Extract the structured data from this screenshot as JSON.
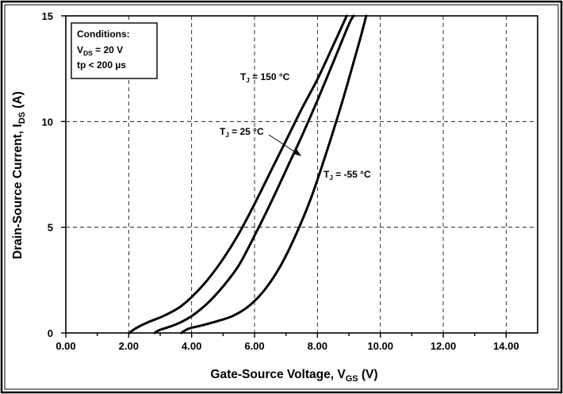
{
  "chart_data": {
    "type": "line",
    "title": "",
    "xlabel": {
      "main": "Gate-Source Voltage, V",
      "sub": "GS",
      "unit": " (V)"
    },
    "ylabel": {
      "main": "Drain-Source Current, I",
      "sub": "DS",
      "unit": " (A)"
    },
    "xlim": [
      0,
      15
    ],
    "ylim": [
      0,
      15
    ],
    "x_ticks": [
      0,
      2,
      4,
      6,
      8,
      10,
      12,
      14
    ],
    "x_tick_labels": [
      "0.00",
      "2.00",
      "4.00",
      "6.00",
      "8.00",
      "10.00",
      "12.00",
      "14.00"
    ],
    "y_ticks": [
      0,
      5,
      10,
      15
    ],
    "y_tick_labels": [
      "0",
      "5",
      "10",
      "15"
    ],
    "grid": true,
    "conditions": {
      "title": "Conditions:",
      "line1": {
        "main": "V",
        "sub": "DS",
        "rest": " = 20 V"
      },
      "line2": "tp < 200 µs"
    },
    "series": [
      {
        "name": "T_J = 150 °C",
        "label": {
          "main": "T",
          "sub": "J",
          "rest": " = 150 °C"
        },
        "x": [
          2.03,
          2.2,
          2.6,
          3.1,
          3.6,
          4.0,
          4.5,
          5.0,
          5.5,
          6.0,
          6.5,
          7.0,
          7.5,
          8.0,
          8.5,
          8.93
        ],
        "y": [
          0.0,
          0.2,
          0.5,
          0.8,
          1.2,
          1.7,
          2.5,
          3.5,
          4.7,
          6.1,
          7.6,
          9.1,
          10.6,
          12.0,
          13.6,
          15.0
        ]
      },
      {
        "name": "T_J = 25 °C",
        "label": {
          "main": "T",
          "sub": "J",
          "rest": " = 25 °C"
        },
        "x": [
          2.82,
          3.0,
          3.5,
          4.0,
          4.5,
          5.0,
          5.5,
          6.0,
          6.5,
          7.0,
          7.5,
          8.0,
          8.5,
          9.0,
          9.15
        ],
        "y": [
          0.0,
          0.15,
          0.4,
          0.8,
          1.4,
          2.2,
          3.2,
          4.6,
          6.1,
          7.7,
          9.3,
          11.0,
          12.8,
          14.6,
          15.0
        ]
      },
      {
        "name": "T_J = -55 °C",
        "label": {
          "main": "T",
          "sub": "J",
          "rest": " = -55 °C"
        },
        "x": [
          3.67,
          3.9,
          4.3,
          4.8,
          5.3,
          5.8,
          6.3,
          6.8,
          7.3,
          7.8,
          8.3,
          8.8,
          9.3,
          9.55
        ],
        "y": [
          0.0,
          0.2,
          0.35,
          0.55,
          0.8,
          1.25,
          2.0,
          3.1,
          4.6,
          6.4,
          8.6,
          11.0,
          13.6,
          15.0
        ]
      }
    ]
  }
}
